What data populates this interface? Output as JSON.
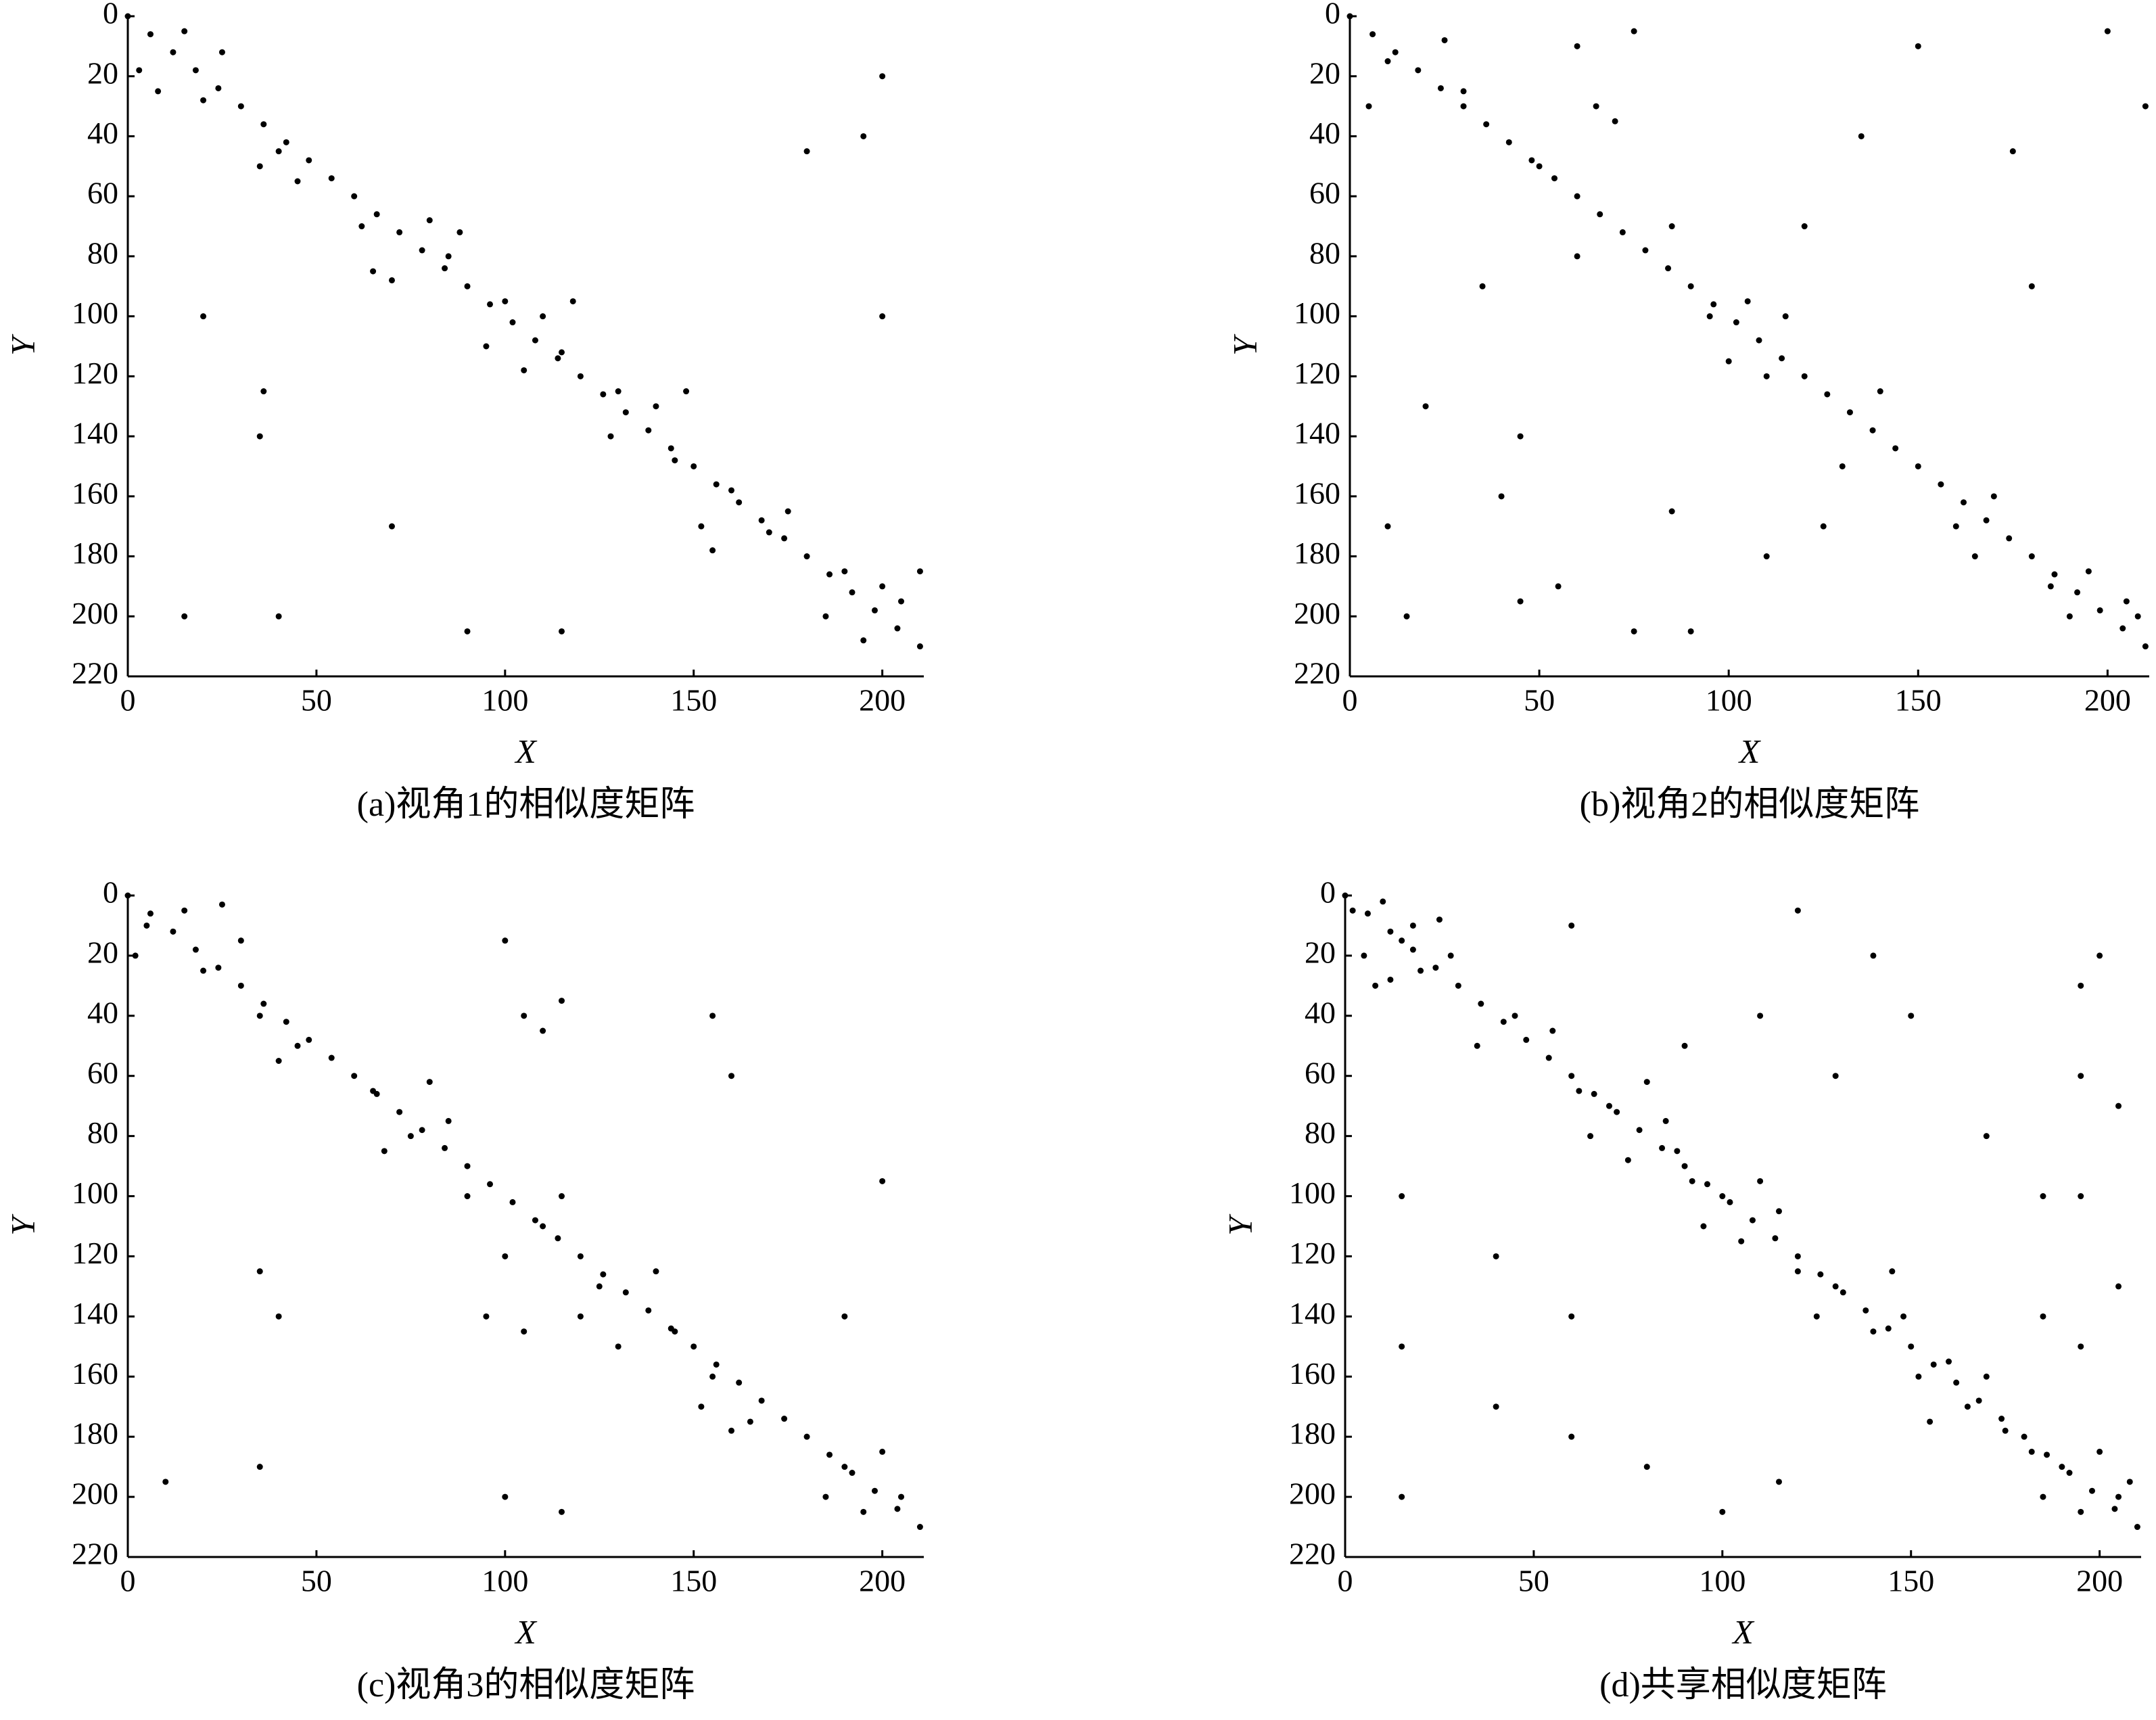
{
  "chart_data": [
    {
      "type": "scatter",
      "title": "(a)视角1的相似度矩阵",
      "x_label": "X",
      "y_label": "Y",
      "color": "#000000",
      "xlim": [
        0,
        211
      ],
      "ylim": [
        220,
        0
      ],
      "xticks": [
        0,
        50,
        100,
        150,
        200
      ],
      "yticks": [
        0,
        20,
        40,
        60,
        80,
        100,
        120,
        140,
        160,
        180,
        200,
        220
      ],
      "x": [
        0,
        6,
        12,
        18,
        24,
        30,
        36,
        42,
        48,
        54,
        60,
        66,
        72,
        78,
        84,
        90,
        96,
        102,
        108,
        114,
        120,
        126,
        132,
        138,
        144,
        150,
        156,
        162,
        168,
        174,
        180,
        186,
        192,
        198,
        204,
        210,
        3,
        8,
        15,
        20,
        25,
        35,
        40,
        45,
        62,
        65,
        70,
        80,
        85,
        88,
        95,
        100,
        105,
        110,
        115,
        118,
        128,
        130,
        140,
        145,
        148,
        152,
        155,
        160,
        170,
        175,
        185,
        190,
        195,
        200,
        205,
        210,
        36,
        40,
        90,
        115,
        195,
        200,
        180,
        35,
        70,
        200,
        15,
        20
      ],
      "values": [
        0,
        6,
        12,
        18,
        24,
        30,
        36,
        42,
        48,
        54,
        60,
        66,
        72,
        78,
        84,
        90,
        96,
        102,
        108,
        114,
        120,
        126,
        132,
        138,
        144,
        150,
        156,
        162,
        168,
        174,
        180,
        186,
        192,
        198,
        204,
        210,
        18,
        25,
        5,
        28,
        12,
        50,
        45,
        55,
        70,
        85,
        88,
        68,
        80,
        72,
        110,
        95,
        118,
        100,
        112,
        95,
        140,
        125,
        130,
        148,
        125,
        170,
        178,
        158,
        172,
        165,
        200,
        185,
        208,
        190,
        195,
        185,
        125,
        200,
        205,
        205,
        40,
        20,
        45,
        140,
        170,
        100,
        200,
        100
      ]
    },
    {
      "type": "scatter",
      "title": "(b)视角2的相似度矩阵",
      "x_label": "X",
      "y_label": "Y",
      "color": "#000000",
      "xlim": [
        0,
        211
      ],
      "ylim": [
        220,
        0
      ],
      "xticks": [
        0,
        50,
        100,
        150,
        200
      ],
      "yticks": [
        0,
        20,
        40,
        60,
        80,
        100,
        120,
        140,
        160,
        180,
        200,
        220
      ],
      "x": [
        0,
        6,
        12,
        18,
        24,
        30,
        36,
        42,
        48,
        54,
        60,
        66,
        72,
        78,
        84,
        90,
        96,
        102,
        108,
        114,
        120,
        126,
        132,
        138,
        144,
        150,
        156,
        162,
        168,
        174,
        180,
        186,
        192,
        198,
        204,
        210,
        5,
        10,
        25,
        30,
        50,
        45,
        40,
        60,
        65,
        70,
        75,
        85,
        95,
        100,
        105,
        110,
        115,
        125,
        130,
        135,
        140,
        160,
        165,
        170,
        175,
        185,
        190,
        195,
        205,
        208,
        20,
        10,
        15,
        55,
        75,
        85,
        110,
        180,
        150,
        120,
        200,
        210,
        35,
        60,
        90,
        45
      ],
      "values": [
        0,
        6,
        12,
        18,
        24,
        30,
        36,
        42,
        48,
        54,
        60,
        66,
        72,
        78,
        84,
        90,
        96,
        102,
        108,
        114,
        120,
        126,
        132,
        138,
        144,
        150,
        156,
        162,
        168,
        174,
        180,
        186,
        192,
        198,
        204,
        210,
        30,
        15,
        8,
        25,
        50,
        140,
        160,
        80,
        30,
        35,
        5,
        70,
        100,
        115,
        95,
        120,
        100,
        170,
        150,
        40,
        125,
        170,
        180,
        160,
        45,
        190,
        200,
        185,
        195,
        200,
        130,
        170,
        200,
        190,
        205,
        165,
        180,
        90,
        10,
        70,
        5,
        30,
        90,
        10,
        205,
        195
      ]
    },
    {
      "type": "scatter",
      "title": "(c)视角3的相似度矩阵",
      "x_label": "X",
      "y_label": "Y",
      "color": "#000000",
      "xlim": [
        0,
        211
      ],
      "ylim": [
        220,
        0
      ],
      "xticks": [
        0,
        50,
        100,
        150,
        200
      ],
      "yticks": [
        0,
        20,
        40,
        60,
        80,
        100,
        120,
        140,
        160,
        180,
        200,
        220
      ],
      "x": [
        0,
        6,
        12,
        18,
        24,
        30,
        36,
        42,
        48,
        54,
        60,
        66,
        72,
        78,
        84,
        90,
        96,
        102,
        108,
        114,
        120,
        126,
        132,
        138,
        144,
        150,
        156,
        162,
        168,
        174,
        180,
        186,
        192,
        198,
        204,
        210,
        2,
        5,
        15,
        20,
        25,
        30,
        35,
        40,
        45,
        65,
        68,
        75,
        80,
        85,
        90,
        95,
        100,
        105,
        110,
        115,
        120,
        125,
        130,
        140,
        145,
        152,
        155,
        160,
        165,
        185,
        190,
        195,
        200,
        205,
        100,
        105,
        110,
        115,
        35,
        40,
        35,
        100,
        115,
        200,
        190,
        10,
        160,
        155
      ],
      "values": [
        0,
        6,
        12,
        18,
        24,
        30,
        36,
        42,
        48,
        54,
        60,
        66,
        72,
        78,
        84,
        90,
        96,
        102,
        108,
        114,
        120,
        126,
        132,
        138,
        144,
        150,
        156,
        162,
        168,
        174,
        180,
        186,
        192,
        198,
        204,
        210,
        20,
        10,
        5,
        25,
        3,
        15,
        40,
        55,
        50,
        65,
        85,
        80,
        62,
        75,
        100,
        140,
        120,
        145,
        110,
        100,
        140,
        130,
        150,
        125,
        145,
        170,
        160,
        178,
        175,
        200,
        190,
        205,
        185,
        200,
        15,
        40,
        45,
        35,
        125,
        140,
        190,
        200,
        205,
        95,
        140,
        195,
        60,
        40
      ]
    },
    {
      "type": "scatter",
      "title": "(d)共享相似度矩阵",
      "x_label": "X",
      "y_label": "Y",
      "color": "#000000",
      "xlim": [
        0,
        211
      ],
      "ylim": [
        220,
        0
      ],
      "xticks": [
        0,
        50,
        100,
        150,
        200
      ],
      "yticks": [
        0,
        20,
        40,
        60,
        80,
        100,
        120,
        140,
        160,
        180,
        200,
        220
      ],
      "x": [
        0,
        6,
        12,
        18,
        24,
        30,
        36,
        42,
        48,
        54,
        60,
        66,
        72,
        78,
        84,
        90,
        96,
        102,
        108,
        114,
        120,
        126,
        132,
        138,
        144,
        150,
        156,
        162,
        168,
        174,
        180,
        186,
        192,
        198,
        204,
        210,
        2,
        5,
        8,
        10,
        15,
        20,
        25,
        28,
        18,
        12,
        35,
        45,
        55,
        62,
        65,
        70,
        75,
        80,
        85,
        88,
        92,
        95,
        100,
        105,
        110,
        115,
        120,
        125,
        130,
        140,
        145,
        148,
        152,
        155,
        160,
        165,
        170,
        175,
        182,
        185,
        190,
        195,
        200,
        205,
        208,
        195,
        195,
        195,
        195,
        200,
        205,
        205,
        185,
        185,
        15,
        15,
        15,
        40,
        60,
        80,
        100,
        115,
        130,
        150,
        170,
        120,
        60,
        90,
        110,
        40,
        60,
        140
      ],
      "values": [
        0,
        6,
        12,
        18,
        24,
        30,
        36,
        42,
        48,
        54,
        60,
        66,
        72,
        78,
        84,
        90,
        96,
        102,
        108,
        114,
        120,
        126,
        132,
        138,
        144,
        150,
        156,
        162,
        168,
        174,
        180,
        186,
        192,
        198,
        204,
        210,
        5,
        20,
        30,
        2,
        15,
        25,
        8,
        20,
        10,
        28,
        50,
        40,
        45,
        65,
        80,
        70,
        88,
        62,
        75,
        85,
        95,
        110,
        100,
        115,
        95,
        105,
        125,
        140,
        130,
        145,
        125,
        140,
        160,
        175,
        155,
        170,
        160,
        178,
        185,
        200,
        190,
        205,
        185,
        200,
        195,
        30,
        60,
        100,
        150,
        20,
        70,
        130,
        100,
        140,
        100,
        150,
        200,
        170,
        180,
        190,
        205,
        195,
        60,
        40,
        80,
        5,
        10,
        50,
        40,
        120,
        140,
        20
      ]
    }
  ]
}
